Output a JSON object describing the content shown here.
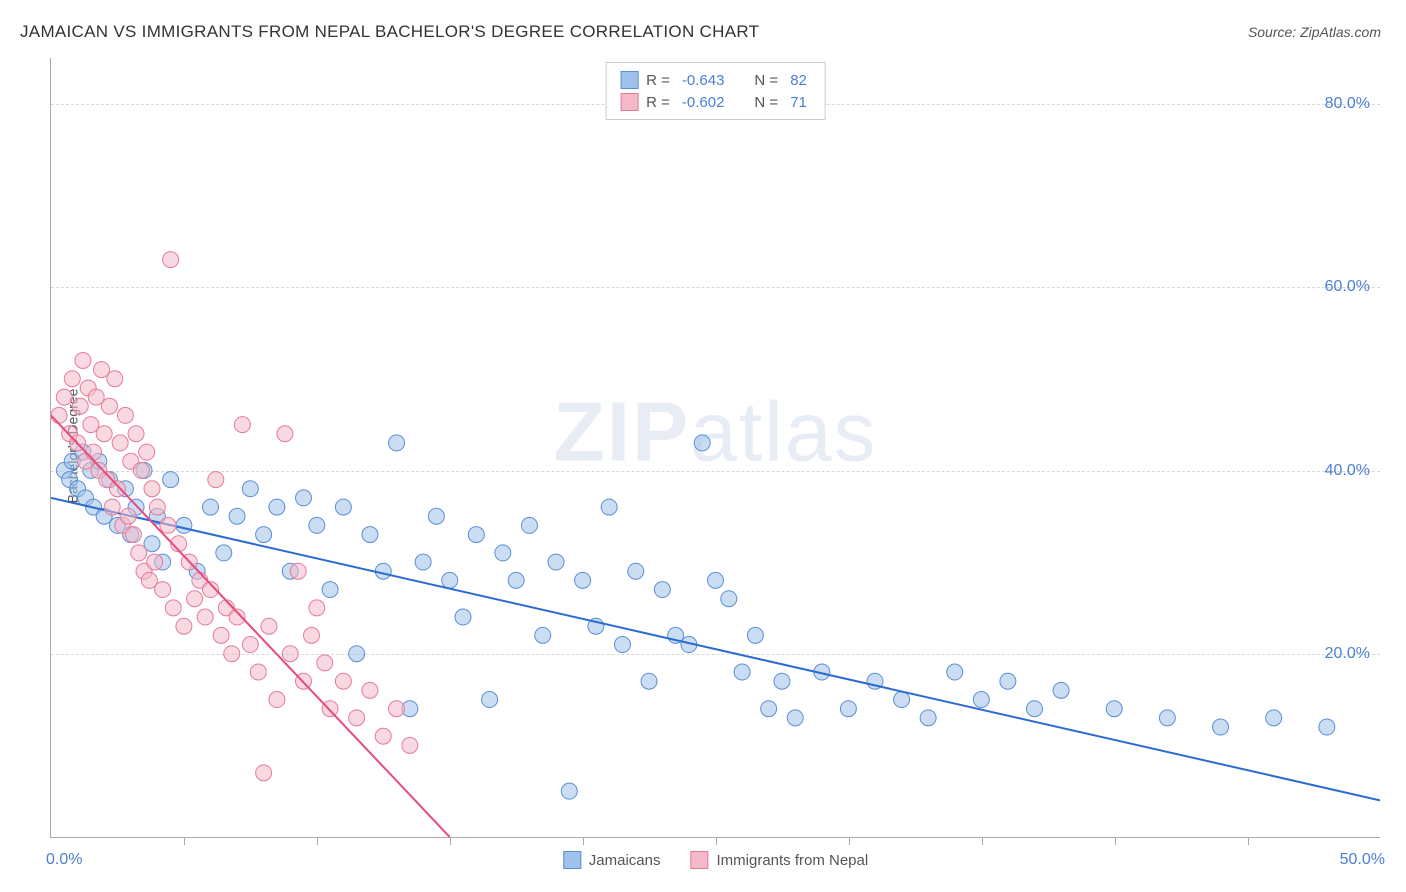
{
  "title": "JAMAICAN VS IMMIGRANTS FROM NEPAL BACHELOR'S DEGREE CORRELATION CHART",
  "source": "Source: ZipAtlas.com",
  "watermark_bold": "ZIP",
  "watermark_light": "atlas",
  "y_axis_title": "Bachelor's Degree",
  "chart": {
    "type": "scatter",
    "background_color": "#ffffff",
    "grid_color": "#d8d8d8",
    "axis_color": "#aaaaaa",
    "tick_label_color": "#4a7fd6",
    "xlim": [
      0,
      50
    ],
    "ylim": [
      0,
      85
    ],
    "x_tick_positions": [
      5,
      10,
      15,
      20,
      25,
      30,
      35,
      40,
      45
    ],
    "x_labels": {
      "start": "0.0%",
      "end": "50.0%"
    },
    "y_ticks": [
      {
        "v": 20,
        "label": "20.0%"
      },
      {
        "v": 40,
        "label": "40.0%"
      },
      {
        "v": 60,
        "label": "60.0%"
      },
      {
        "v": 80,
        "label": "80.0%"
      }
    ],
    "marker_radius": 8,
    "marker_opacity": 0.55,
    "line_width": 2,
    "series": [
      {
        "name": "Jamaicans",
        "color_fill": "#9fc1ea",
        "color_stroke": "#5a8fd6",
        "line_color": "#2a6bd0",
        "R": "-0.643",
        "N": "82",
        "trend": {
          "x1": 0,
          "y1": 37,
          "x2": 50,
          "y2": 4
        },
        "points": [
          [
            0.5,
            40
          ],
          [
            0.7,
            39
          ],
          [
            0.8,
            41
          ],
          [
            1.0,
            38
          ],
          [
            1.2,
            42
          ],
          [
            1.3,
            37
          ],
          [
            1.5,
            40
          ],
          [
            1.6,
            36
          ],
          [
            1.8,
            41
          ],
          [
            2.0,
            35
          ],
          [
            2.2,
            39
          ],
          [
            2.5,
            34
          ],
          [
            2.8,
            38
          ],
          [
            3.0,
            33
          ],
          [
            3.2,
            36
          ],
          [
            3.5,
            40
          ],
          [
            3.8,
            32
          ],
          [
            4.0,
            35
          ],
          [
            4.2,
            30
          ],
          [
            4.5,
            39
          ],
          [
            5.0,
            34
          ],
          [
            5.5,
            29
          ],
          [
            6.0,
            36
          ],
          [
            6.5,
            31
          ],
          [
            7.0,
            35
          ],
          [
            7.5,
            38
          ],
          [
            8.0,
            33
          ],
          [
            8.5,
            36
          ],
          [
            9.0,
            29
          ],
          [
            9.5,
            37
          ],
          [
            10.0,
            34
          ],
          [
            10.5,
            27
          ],
          [
            11.0,
            36
          ],
          [
            11.5,
            20
          ],
          [
            12.0,
            33
          ],
          [
            12.5,
            29
          ],
          [
            13.0,
            43
          ],
          [
            13.5,
            14
          ],
          [
            14.0,
            30
          ],
          [
            14.5,
            35
          ],
          [
            15.0,
            28
          ],
          [
            15.5,
            24
          ],
          [
            16.0,
            33
          ],
          [
            16.5,
            15
          ],
          [
            17.0,
            31
          ],
          [
            17.5,
            28
          ],
          [
            18.0,
            34
          ],
          [
            18.5,
            22
          ],
          [
            19.0,
            30
          ],
          [
            19.5,
            5
          ],
          [
            20.0,
            28
          ],
          [
            20.5,
            23
          ],
          [
            21.0,
            36
          ],
          [
            21.5,
            21
          ],
          [
            22.0,
            29
          ],
          [
            22.5,
            17
          ],
          [
            23.0,
            27
          ],
          [
            23.5,
            22
          ],
          [
            24.0,
            21
          ],
          [
            24.5,
            43
          ],
          [
            25.0,
            28
          ],
          [
            25.5,
            26
          ],
          [
            26.0,
            18
          ],
          [
            26.5,
            22
          ],
          [
            27.0,
            14
          ],
          [
            27.5,
            17
          ],
          [
            28.0,
            13
          ],
          [
            29.0,
            18
          ],
          [
            30.0,
            14
          ],
          [
            31.0,
            17
          ],
          [
            32.0,
            15
          ],
          [
            33.0,
            13
          ],
          [
            34.0,
            18
          ],
          [
            35.0,
            15
          ],
          [
            36.0,
            17
          ],
          [
            37.0,
            14
          ],
          [
            38.0,
            16
          ],
          [
            40.0,
            14
          ],
          [
            42.0,
            13
          ],
          [
            44.0,
            12
          ],
          [
            46.0,
            13
          ],
          [
            48.0,
            12
          ]
        ]
      },
      {
        "name": "Immigrants from Nepal",
        "color_fill": "#f4b9c8",
        "color_stroke": "#e67a9a",
        "line_color": "#e84a7a",
        "R": "-0.602",
        "N": "71",
        "trend": {
          "x1": 0,
          "y1": 46,
          "x2": 15,
          "y2": 0
        },
        "points": [
          [
            0.3,
            46
          ],
          [
            0.5,
            48
          ],
          [
            0.7,
            44
          ],
          [
            0.8,
            50
          ],
          [
            1.0,
            43
          ],
          [
            1.1,
            47
          ],
          [
            1.2,
            52
          ],
          [
            1.3,
            41
          ],
          [
            1.4,
            49
          ],
          [
            1.5,
            45
          ],
          [
            1.6,
            42
          ],
          [
            1.7,
            48
          ],
          [
            1.8,
            40
          ],
          [
            1.9,
            51
          ],
          [
            2.0,
            44
          ],
          [
            2.1,
            39
          ],
          [
            2.2,
            47
          ],
          [
            2.3,
            36
          ],
          [
            2.4,
            50
          ],
          [
            2.5,
            38
          ],
          [
            2.6,
            43
          ],
          [
            2.7,
            34
          ],
          [
            2.8,
            46
          ],
          [
            2.9,
            35
          ],
          [
            3.0,
            41
          ],
          [
            3.1,
            33
          ],
          [
            3.2,
            44
          ],
          [
            3.3,
            31
          ],
          [
            3.4,
            40
          ],
          [
            3.5,
            29
          ],
          [
            3.6,
            42
          ],
          [
            3.7,
            28
          ],
          [
            3.8,
            38
          ],
          [
            3.9,
            30
          ],
          [
            4.0,
            36
          ],
          [
            4.2,
            27
          ],
          [
            4.4,
            34
          ],
          [
            4.5,
            63
          ],
          [
            4.6,
            25
          ],
          [
            4.8,
            32
          ],
          [
            5.0,
            23
          ],
          [
            5.2,
            30
          ],
          [
            5.4,
            26
          ],
          [
            5.6,
            28
          ],
          [
            5.8,
            24
          ],
          [
            6.0,
            27
          ],
          [
            6.2,
            39
          ],
          [
            6.4,
            22
          ],
          [
            6.6,
            25
          ],
          [
            6.8,
            20
          ],
          [
            7.0,
            24
          ],
          [
            7.2,
            45
          ],
          [
            7.5,
            21
          ],
          [
            7.8,
            18
          ],
          [
            8.0,
            7
          ],
          [
            8.2,
            23
          ],
          [
            8.5,
            15
          ],
          [
            8.8,
            44
          ],
          [
            9.0,
            20
          ],
          [
            9.3,
            29
          ],
          [
            9.5,
            17
          ],
          [
            9.8,
            22
          ],
          [
            10.0,
            25
          ],
          [
            10.3,
            19
          ],
          [
            10.5,
            14
          ],
          [
            11.0,
            17
          ],
          [
            11.5,
            13
          ],
          [
            12.0,
            16
          ],
          [
            12.5,
            11
          ],
          [
            13.0,
            14
          ],
          [
            13.5,
            10
          ]
        ]
      }
    ]
  },
  "legend_top": {
    "r_prefix": "R = ",
    "n_prefix": "N = "
  },
  "legend_bottom": [
    {
      "label": "Jamaicans",
      "fill": "#9fc1ea",
      "stroke": "#5a8fd6"
    },
    {
      "label": "Immigrants from Nepal",
      "fill": "#f4b9c8",
      "stroke": "#e67a9a"
    }
  ]
}
